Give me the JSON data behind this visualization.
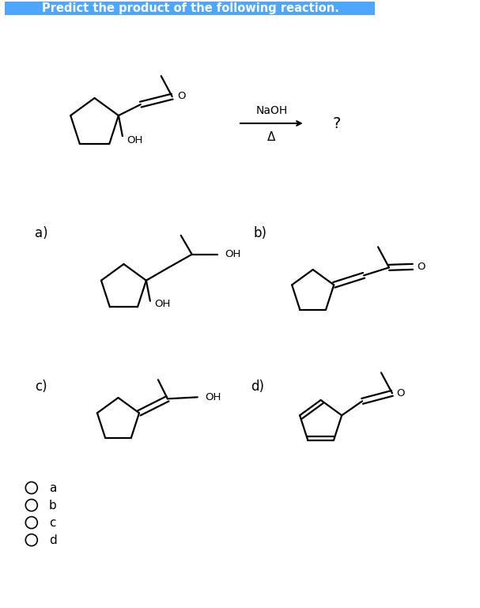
{
  "title": "Predict the product of the following reaction.",
  "title_bg": "#4da6ff",
  "title_color": "white",
  "title_fontsize": 10.5,
  "reagent_text": "NaOH",
  "delta_text": "Δ",
  "question_mark": "?",
  "options": [
    "a",
    "b",
    "c",
    "d"
  ]
}
